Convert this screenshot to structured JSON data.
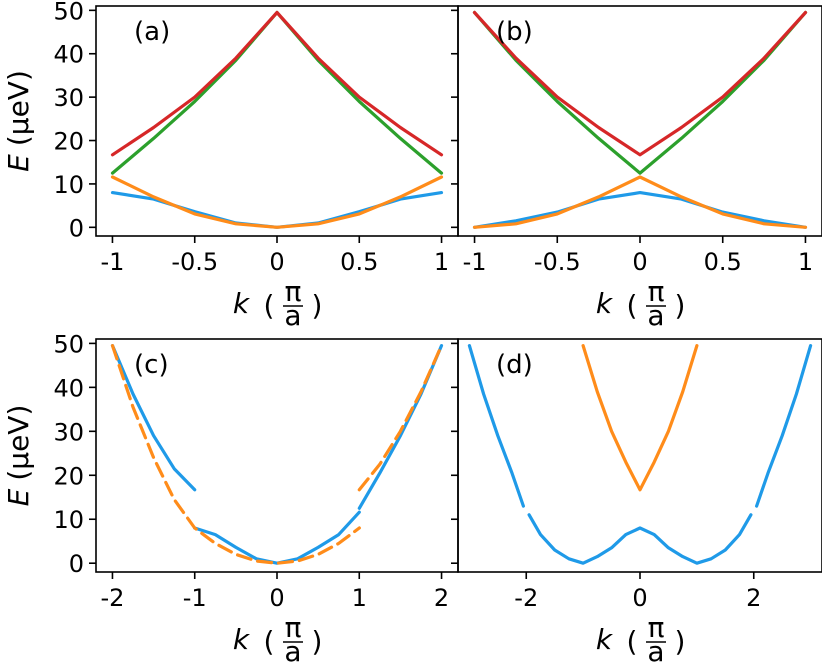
{
  "chart_data": [
    {
      "panel": "(a)",
      "type": "line",
      "xlabel": "k",
      "xunit_num": "π",
      "xunit_den": "a",
      "ylabel": "E",
      "yunit": "(μeV)",
      "xlim": [
        -1.1,
        1.1
      ],
      "ylim": [
        -2,
        51
      ],
      "xticks": [
        -1,
        -0.5,
        0,
        0.5,
        1
      ],
      "xticklabels": [
        "-1",
        "-0.5",
        "0",
        "0.5",
        "1"
      ],
      "yticks": [
        0,
        10,
        20,
        30,
        40,
        50
      ],
      "yticklabels": [
        "0",
        "10",
        "20",
        "30",
        "40",
        "50"
      ],
      "series": [
        {
          "color": "#1f9ae8",
          "style": "solid",
          "x": [
            -1,
            -0.75,
            -0.5,
            -0.25,
            0,
            0.25,
            0.5,
            0.75,
            1
          ],
          "y": [
            8,
            6.5,
            3.6,
            1,
            0,
            1,
            3.6,
            6.5,
            8
          ]
        },
        {
          "color": "#ff8c1a",
          "style": "solid",
          "x": [
            -1,
            -0.75,
            -0.5,
            -0.25,
            0,
            0.25,
            0.5,
            0.75,
            1
          ],
          "y": [
            11.6,
            7,
            3.1,
            0.8,
            0,
            0.8,
            3.1,
            7,
            11.6
          ]
        },
        {
          "color": "#2ca02c",
          "style": "solid",
          "x": [
            -1,
            -0.75,
            -0.5,
            -0.25,
            0,
            0.25,
            0.5,
            0.75,
            1
          ],
          "y": [
            12.5,
            20.5,
            29,
            38.5,
            49.5,
            38.5,
            29,
            20.5,
            12.5
          ]
        },
        {
          "color": "#d62728",
          "style": "solid",
          "x": [
            -1,
            -0.75,
            -0.5,
            -0.25,
            0,
            0.25,
            0.5,
            0.75,
            1
          ],
          "y": [
            16.7,
            23,
            30,
            39,
            49.5,
            39,
            30,
            23,
            16.7
          ]
        }
      ]
    },
    {
      "panel": "(b)",
      "type": "line",
      "xlabel": "k",
      "xunit_num": "π",
      "xunit_den": "a",
      "xlim": [
        -1.1,
        1.1
      ],
      "ylim": [
        -2,
        51
      ],
      "xticks": [
        -1,
        -0.5,
        0,
        0.5,
        1
      ],
      "xticklabels": [
        "-1",
        "-0.5",
        "0",
        "0.5",
        "1"
      ],
      "yticks": [
        0,
        10,
        20,
        30,
        40,
        50
      ],
      "series": [
        {
          "color": "#1f9ae8",
          "style": "solid",
          "x": [
            -1,
            -0.75,
            -0.5,
            -0.25,
            0,
            0.25,
            0.5,
            0.75,
            1
          ],
          "y": [
            0,
            1.5,
            3.5,
            6.5,
            8,
            6.5,
            3.5,
            1.5,
            0
          ]
        },
        {
          "color": "#ff8c1a",
          "style": "solid",
          "x": [
            -1,
            -0.75,
            -0.5,
            -0.25,
            0,
            0.25,
            0.5,
            0.75,
            1
          ],
          "y": [
            0,
            0.8,
            3.1,
            7,
            11.6,
            7,
            3.1,
            0.8,
            0
          ]
        },
        {
          "color": "#2ca02c",
          "style": "solid",
          "x": [
            -1,
            -0.75,
            -0.5,
            -0.25,
            0,
            0.25,
            0.5,
            0.75,
            1
          ],
          "y": [
            49.5,
            38.5,
            29,
            20.5,
            12.5,
            20.5,
            29,
            38.5,
            49.5
          ]
        },
        {
          "color": "#d62728",
          "style": "solid",
          "x": [
            -1,
            -0.75,
            -0.5,
            -0.25,
            0,
            0.25,
            0.5,
            0.75,
            1
          ],
          "y": [
            49.5,
            39,
            30,
            23,
            16.7,
            23,
            30,
            39,
            49.5
          ]
        }
      ]
    },
    {
      "panel": "(c)",
      "type": "line",
      "xlabel": "k",
      "xunit_num": "π",
      "xunit_den": "a",
      "ylabel": "E",
      "yunit": "(μeV)",
      "xlim": [
        -2.2,
        2.2
      ],
      "ylim": [
        -2,
        51
      ],
      "xticks": [
        -2,
        -1,
        0,
        1,
        2
      ],
      "xticklabels": [
        "-2",
        "-1",
        "0",
        "1",
        "2"
      ],
      "yticks": [
        0,
        10,
        20,
        30,
        40,
        50
      ],
      "yticklabels": [
        "0",
        "10",
        "20",
        "30",
        "40",
        "50"
      ],
      "series": [
        {
          "color": "#1f9ae8",
          "style": "solid",
          "x": [
            -2,
            -1.75,
            -1.5,
            -1.25,
            -1
          ],
          "y": [
            49.5,
            38.5,
            29,
            21.5,
            16.7
          ]
        },
        {
          "color": "#1f9ae8",
          "style": "solid",
          "x": [
            -1,
            -0.75,
            -0.5,
            -0.25,
            0,
            0.25,
            0.5,
            0.75,
            1
          ],
          "y": [
            8,
            6.5,
            3.6,
            1,
            0,
            1,
            3.6,
            6.5,
            11.6
          ]
        },
        {
          "color": "#1f9ae8",
          "style": "solid",
          "x": [
            1,
            1.25,
            1.5,
            1.75,
            2
          ],
          "y": [
            12.5,
            20.5,
            29,
            38.5,
            49.5
          ]
        },
        {
          "color": "#ff8c1a",
          "style": "dashed",
          "x": [
            -2,
            -1.75,
            -1.5,
            -1.25,
            -1,
            -0.75,
            -0.5,
            -0.25,
            0,
            0.25,
            0.5,
            0.75,
            1
          ],
          "y": [
            49.5,
            35.5,
            24,
            14.5,
            8,
            4.5,
            2,
            0.5,
            0,
            0.5,
            2,
            4.5,
            8
          ]
        },
        {
          "color": "#ff8c1a",
          "style": "dashed",
          "x": [
            1,
            1.25,
            1.5,
            1.75,
            2
          ],
          "y": [
            16.7,
            22.5,
            30,
            39,
            49.5
          ]
        }
      ]
    },
    {
      "panel": "(d)",
      "type": "line",
      "xlabel": "k",
      "xunit_num": "π",
      "xunit_den": "a",
      "xlim": [
        -3.2,
        3.2
      ],
      "ylim": [
        -2,
        51
      ],
      "xticks": [
        -2,
        0,
        2
      ],
      "xticklabels": [
        "-2",
        "0",
        "2"
      ],
      "yticks": [
        0,
        10,
        20,
        30,
        40,
        50
      ],
      "series": [
        {
          "color": "#1f9ae8",
          "style": "solid",
          "x": [
            -3,
            -2.75,
            -2.5,
            -2.25,
            -2.05
          ],
          "y": [
            49.5,
            38.5,
            29,
            20.5,
            13
          ]
        },
        {
          "color": "#1f9ae8",
          "style": "solid",
          "x": [
            -1.95,
            -1.75,
            -1.5,
            -1.25,
            -1,
            -0.75,
            -0.5,
            -0.25,
            0,
            0.25,
            0.5,
            0.75,
            1,
            1.25,
            1.5,
            1.75,
            1.95
          ],
          "y": [
            11,
            6.5,
            3,
            1,
            0,
            1.5,
            3.5,
            6.5,
            8,
            6.5,
            3.5,
            1.5,
            0,
            1,
            3,
            6.5,
            11
          ]
        },
        {
          "color": "#1f9ae8",
          "style": "solid",
          "x": [
            2.05,
            2.25,
            2.5,
            2.75,
            3
          ],
          "y": [
            13,
            20.5,
            29,
            38.5,
            49.5
          ]
        },
        {
          "color": "#ff8c1a",
          "style": "solid",
          "x": [
            -1,
            -0.75,
            -0.5,
            -0.25,
            0,
            0.25,
            0.5,
            0.75,
            1
          ],
          "y": [
            49.5,
            39,
            30,
            23,
            16.7,
            23,
            30,
            39,
            49.5
          ]
        }
      ]
    }
  ]
}
